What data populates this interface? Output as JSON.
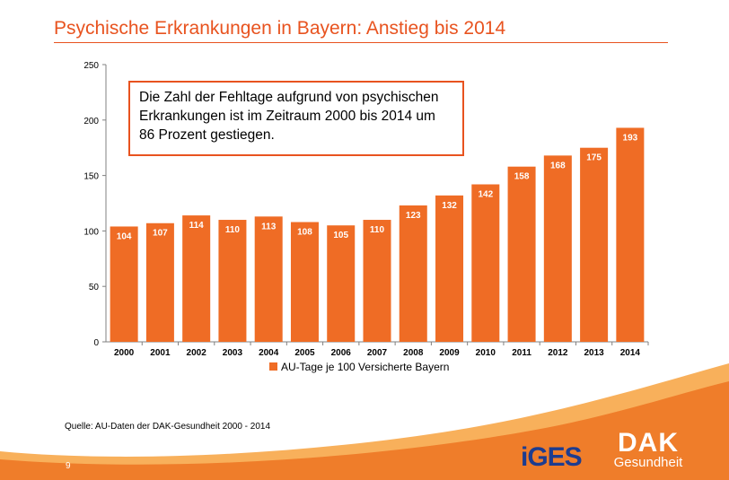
{
  "slide": {
    "title": "Psychische Erkrankungen in Bayern: Anstieg bis 2014",
    "callout": "Die Zahl der Fehltage aufgrund von psychischen Erkrankungen ist im Zeitraum 2000 bis 2014 um 86 Prozent gestiegen.",
    "source": "Quelle: AU-Daten der DAK-Gesundheit  2000 - 2014",
    "page_number": "9",
    "logos": {
      "iges": "iGES",
      "dak_line1": "DAK",
      "dak_line2": "Gesundheit"
    }
  },
  "colors": {
    "accent": "#e8531f",
    "bar": "#ef6c25",
    "swoosh": "#f7a23e",
    "iges_blue": "#1d3c8f"
  },
  "chart_data": {
    "type": "bar",
    "categories": [
      "2000",
      "2001",
      "2002",
      "2003",
      "2004",
      "2005",
      "2006",
      "2007",
      "2008",
      "2009",
      "2010",
      "2011",
      "2012",
      "2013",
      "2014"
    ],
    "series": [
      {
        "name": "AU-Tage je 100 Versicherte Bayern",
        "values": [
          104,
          107,
          114,
          110,
          113,
          108,
          105,
          110,
          123,
          132,
          142,
          158,
          168,
          175,
          193
        ]
      }
    ],
    "ylim": [
      0,
      250
    ],
    "yticks": [
      0,
      50,
      100,
      150,
      200,
      250
    ],
    "grid": false,
    "legend": "bottom-center",
    "title": "",
    "xlabel": "",
    "ylabel": ""
  }
}
